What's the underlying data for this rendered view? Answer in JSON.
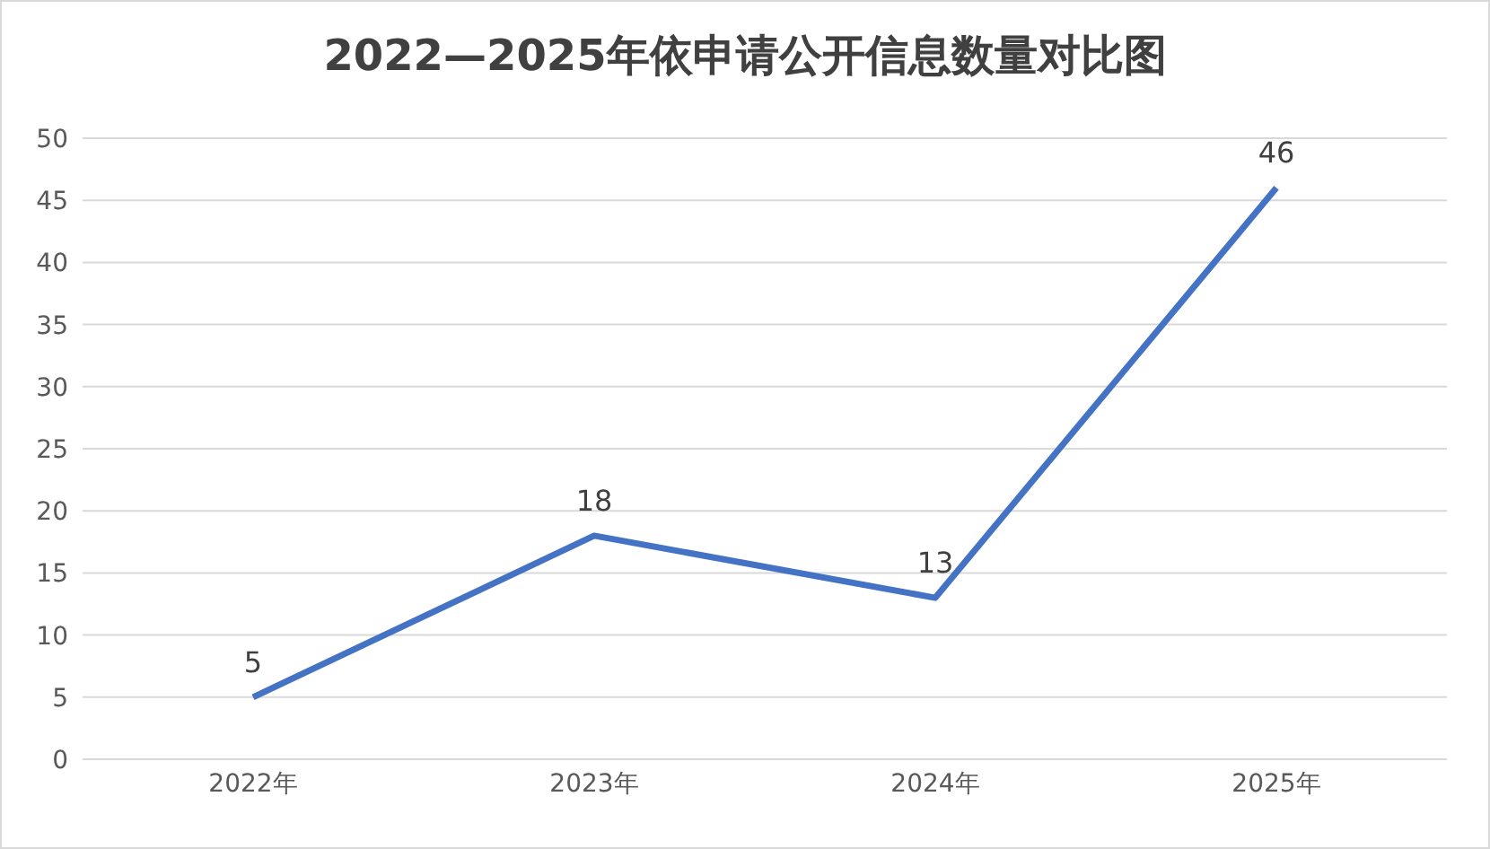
{
  "chart_data": {
    "type": "line",
    "title": "2022—2025年依申请公开信息数量对比图",
    "categories": [
      "2022年",
      "2023年",
      "2024年",
      "2025年"
    ],
    "series": [
      {
        "color": "#4472c4",
        "values": [
          5,
          18,
          13,
          46
        ]
      }
    ],
    "ylim": [
      0,
      50
    ],
    "yticks": [
      0,
      5,
      10,
      15,
      20,
      25,
      30,
      35,
      40,
      45,
      50
    ],
    "grid": "y",
    "marker": "none",
    "line_style": "solid",
    "data_labels": true
  }
}
